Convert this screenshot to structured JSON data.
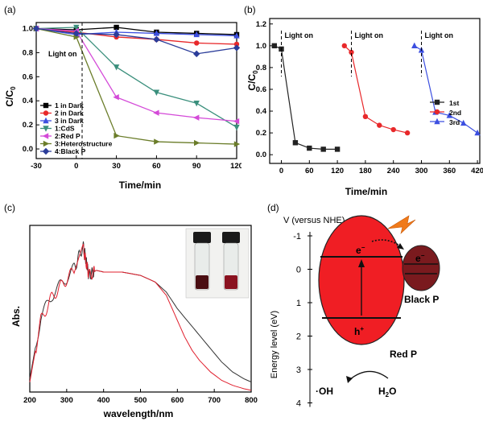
{
  "panels": {
    "a": "(a)",
    "b": "(b)",
    "c": "(c)",
    "d": "(d)"
  },
  "chart_data": [
    {
      "type": "line",
      "panel": "(a)",
      "xlabel": "Time/min",
      "ylabel": "C/C0",
      "ylabel_main": "C/C",
      "ylabel_sub": "0",
      "xlim": [
        -30,
        120
      ],
      "ylim": [
        -0.08,
        1.05
      ],
      "xticks": [
        -30,
        0,
        30,
        60,
        90,
        120
      ],
      "yticks": [
        0.0,
        0.2,
        0.4,
        0.6,
        0.8,
        1.0
      ],
      "ytick_labels": [
        "0.0",
        "0.2",
        "0.4",
        "0.6",
        "0.8",
        "1.0"
      ],
      "annotation": "Light on",
      "legend_position": "bottom-left",
      "series": [
        {
          "name": "1 in Dark",
          "color": "#000000",
          "marker": "square",
          "x": [
            -30,
            0,
            30,
            60,
            90,
            120
          ],
          "y": [
            1.0,
            0.99,
            1.01,
            0.97,
            0.96,
            0.95
          ]
        },
        {
          "name": "2 in Dark",
          "color": "#e8282a",
          "marker": "circle",
          "x": [
            -30,
            0,
            30,
            60,
            90,
            120
          ],
          "y": [
            1.0,
            0.97,
            0.93,
            0.91,
            0.88,
            0.87
          ]
        },
        {
          "name": "3 in Dark",
          "color": "#3c4fe0",
          "marker": "triangle-up",
          "x": [
            -30,
            0,
            30,
            60,
            90,
            120
          ],
          "y": [
            1.0,
            0.95,
            0.97,
            0.96,
            0.95,
            0.94
          ]
        },
        {
          "name": "1:CdS",
          "color": "#3a8f7c",
          "marker": "triangle-down",
          "x": [
            -30,
            0,
            30,
            60,
            90,
            120
          ],
          "y": [
            1.0,
            1.01,
            0.68,
            0.47,
            0.38,
            0.18
          ]
        },
        {
          "name": "2:Red P",
          "color": "#d44ad8",
          "marker": "triangle-left",
          "x": [
            -30,
            0,
            30,
            60,
            90,
            120
          ],
          "y": [
            1.0,
            0.98,
            0.43,
            0.3,
            0.26,
            0.23
          ]
        },
        {
          "name": "3:Heterostructure",
          "color": "#6b7d2a",
          "marker": "triangle-right",
          "x": [
            -30,
            0,
            30,
            60,
            90,
            120
          ],
          "y": [
            1.0,
            0.93,
            0.11,
            0.06,
            0.05,
            0.04
          ]
        },
        {
          "name": "4:Black P",
          "color": "#2b3d9a",
          "marker": "diamond",
          "x": [
            -30,
            0,
            30,
            60,
            90,
            120
          ],
          "y": [
            1.0,
            0.96,
            0.95,
            0.91,
            0.79,
            0.84
          ]
        }
      ]
    },
    {
      "type": "line",
      "panel": "(b)",
      "xlabel": "Time/min",
      "ylabel": "C/C0",
      "ylabel_main": "C/C",
      "ylabel_sub": "0",
      "xlim": [
        -25,
        425
      ],
      "ylim": [
        -0.08,
        1.25
      ],
      "xticks": [
        0,
        60,
        120,
        180,
        240,
        300,
        360,
        420
      ],
      "yticks": [
        0.0,
        0.2,
        0.4,
        0.6,
        0.8,
        1.0,
        1.2
      ],
      "ytick_labels": [
        "0.0",
        "0.2",
        "0.4",
        "0.6",
        "0.8",
        "1.0",
        "1.2"
      ],
      "annotations": [
        "Light on",
        "Light on",
        "Light on"
      ],
      "light_on_x": [
        0,
        150,
        300
      ],
      "legend_position": "right",
      "series": [
        {
          "name": "1st",
          "color": "#222222",
          "marker": "square",
          "x": [
            -15,
            0,
            30,
            60,
            90,
            120
          ],
          "y": [
            1.0,
            0.97,
            0.11,
            0.06,
            0.05,
            0.05
          ]
        },
        {
          "name": "2nd",
          "color": "#e8282a",
          "marker": "circle",
          "x": [
            135,
            150,
            180,
            210,
            240,
            270
          ],
          "y": [
            1.0,
            0.94,
            0.35,
            0.27,
            0.23,
            0.2
          ]
        },
        {
          "name": "3rd",
          "color": "#3c4fe0",
          "marker": "triangle-up",
          "x": [
            285,
            300,
            330,
            360,
            390,
            420
          ],
          "y": [
            1.0,
            0.96,
            0.39,
            0.36,
            0.29,
            0.2
          ]
        }
      ]
    },
    {
      "type": "line",
      "panel": "(c)",
      "xlabel": "wavelength/nm",
      "ylabel": "Abs.",
      "xlim": [
        200,
        800
      ],
      "xticks": [
        200,
        300,
        400,
        500,
        600,
        700,
        800
      ],
      "ylim": [
        0,
        1
      ],
      "series": [
        {
          "name": "",
          "color": "#333333",
          "x": [
            200,
            230,
            260,
            290,
            320,
            345,
            360,
            380,
            400,
            450,
            500,
            540,
            570,
            600,
            630,
            660,
            690,
            720,
            750,
            780,
            800
          ],
          "y": [
            0.08,
            0.45,
            0.58,
            0.66,
            0.74,
            0.88,
            0.7,
            0.73,
            0.72,
            0.72,
            0.7,
            0.66,
            0.6,
            0.5,
            0.42,
            0.34,
            0.26,
            0.18,
            0.12,
            0.08,
            0.06
          ]
        },
        {
          "name": "",
          "color": "#e0202e",
          "x": [
            200,
            230,
            260,
            290,
            320,
            345,
            360,
            380,
            400,
            450,
            500,
            540,
            570,
            600,
            620,
            640,
            660,
            690,
            720,
            750,
            780,
            800
          ],
          "y": [
            0.06,
            0.43,
            0.57,
            0.65,
            0.73,
            0.86,
            0.7,
            0.73,
            0.72,
            0.72,
            0.7,
            0.66,
            0.58,
            0.43,
            0.33,
            0.25,
            0.19,
            0.12,
            0.07,
            0.04,
            0.02,
            0.01
          ]
        }
      ]
    },
    {
      "type": "diagram",
      "panel": "(d)",
      "ylabel": "Energy level (eV)",
      "scale_title": "V (versus NHE)",
      "yticks": [
        "-1",
        "0",
        "1",
        "2",
        "3",
        "4"
      ],
      "electron_red": "e",
      "electron_black": "e",
      "hole": "h",
      "label_red": "Red P",
      "label_black": "Black P",
      "oh": "·OH",
      "water": "H",
      "water_sub": "2",
      "water_tail": "O"
    }
  ]
}
